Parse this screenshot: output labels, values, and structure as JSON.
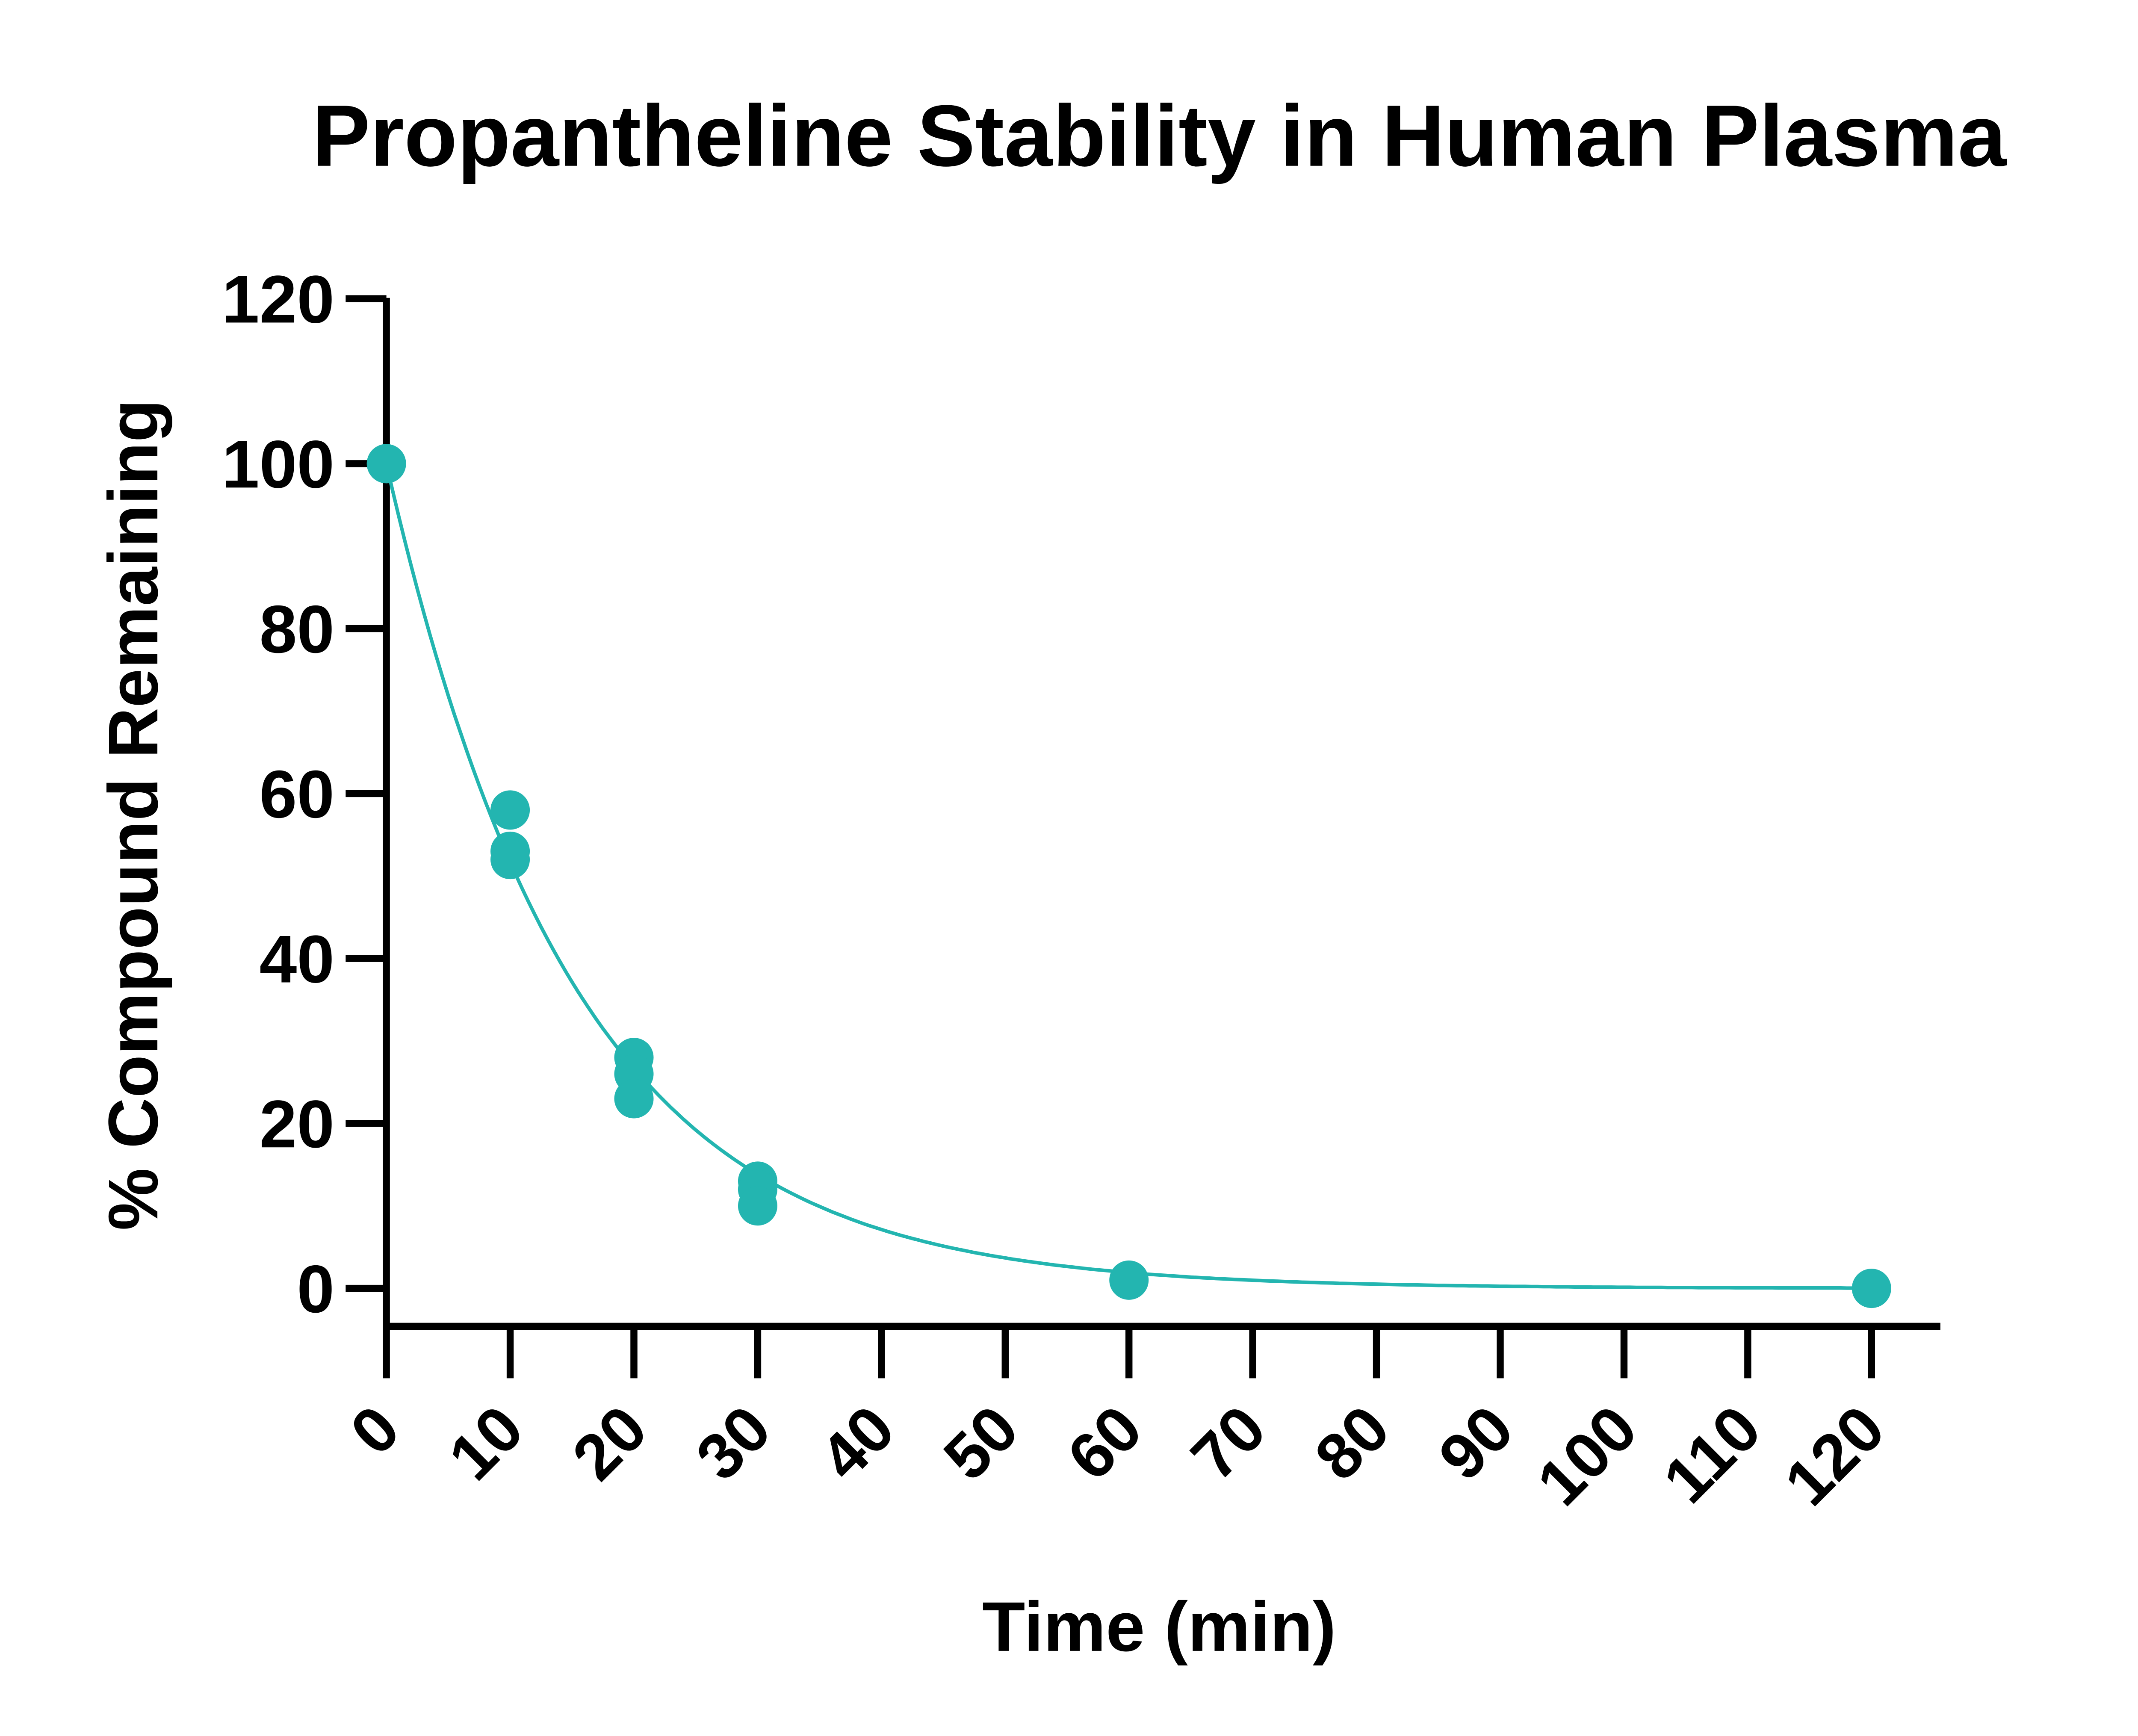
{
  "chart_data": {
    "type": "scatter",
    "title": "Propantheline Stability in Human Plasma",
    "xlabel": "Time (min)",
    "ylabel": "% Compound Remaining",
    "xlim": [
      0,
      125
    ],
    "ylim": [
      -5,
      120
    ],
    "xticks": [
      0,
      10,
      20,
      30,
      40,
      50,
      60,
      70,
      80,
      90,
      100,
      110,
      120
    ],
    "yticks": [
      0,
      20,
      40,
      60,
      80,
      100,
      120
    ],
    "grid": false,
    "legend": "none",
    "color": "#23b5b0",
    "points": [
      {
        "x": 0,
        "y": 100
      },
      {
        "x": 10,
        "y": 58
      },
      {
        "x": 10,
        "y": 53
      },
      {
        "x": 10,
        "y": 52
      },
      {
        "x": 20,
        "y": 28
      },
      {
        "x": 20,
        "y": 26
      },
      {
        "x": 20,
        "y": 23
      },
      {
        "x": 30,
        "y": 13
      },
      {
        "x": 30,
        "y": 12
      },
      {
        "x": 30,
        "y": 10
      },
      {
        "x": 60,
        "y": 1
      },
      {
        "x": 120,
        "y": 0
      }
    ],
    "fit": {
      "model": "one-phase exponential decay",
      "y0": 100,
      "plateau": 0,
      "k": 0.066
    }
  }
}
